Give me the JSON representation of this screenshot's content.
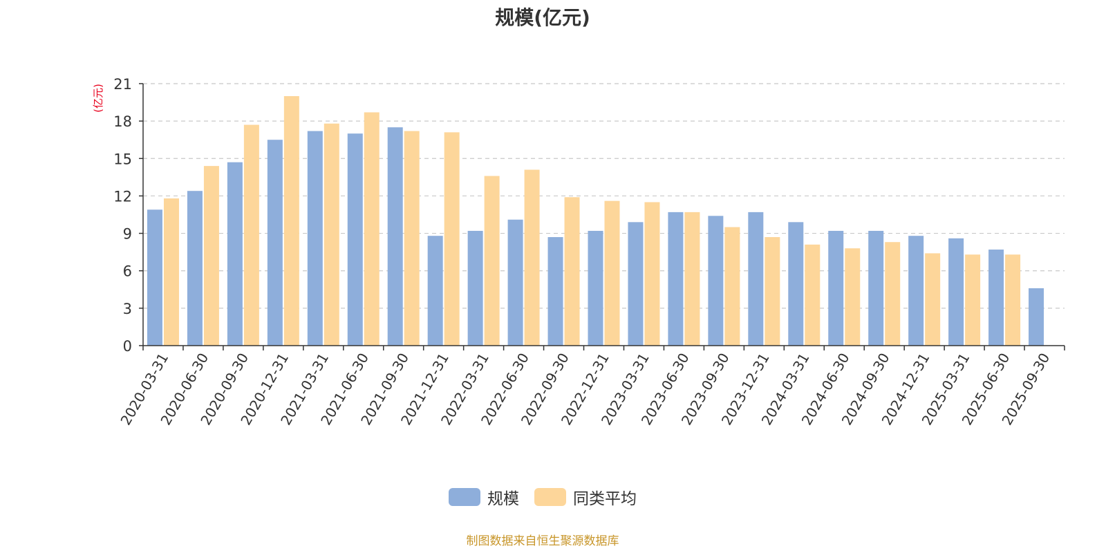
{
  "chart_data": {
    "type": "bar",
    "title": "规模(亿元)",
    "ylabel": "(亿元)",
    "xlabel": "",
    "ylim": [
      0,
      21
    ],
    "yticks": [
      0,
      3,
      6,
      9,
      12,
      15,
      18,
      21
    ],
    "grid": true,
    "legend_position": "bottom-center",
    "categories": [
      "2020-03-31",
      "2020-06-30",
      "2020-09-30",
      "2020-12-31",
      "2021-03-31",
      "2021-06-30",
      "2021-09-30",
      "2021-12-31",
      "2022-03-31",
      "2022-06-30",
      "2022-09-30",
      "2022-12-31",
      "2023-03-31",
      "2023-06-30",
      "2023-09-30",
      "2023-12-31",
      "2024-03-31",
      "2024-06-30",
      "2024-09-30",
      "2024-12-31",
      "2025-03-31",
      "2025-06-30",
      "2025-09-30"
    ],
    "series": [
      {
        "name": "规模",
        "color": "#8eaedb",
        "values": [
          10.9,
          12.4,
          14.7,
          16.5,
          17.2,
          17.0,
          17.5,
          8.8,
          9.2,
          10.1,
          8.7,
          9.2,
          9.9,
          10.7,
          10.4,
          10.7,
          9.9,
          9.2,
          9.2,
          8.8,
          8.6,
          7.7,
          4.6
        ]
      },
      {
        "name": "同类平均",
        "color": "#fdd69a",
        "values": [
          11.8,
          14.4,
          17.7,
          20.0,
          17.8,
          18.7,
          17.2,
          17.1,
          13.6,
          14.1,
          11.9,
          11.6,
          11.5,
          10.7,
          9.5,
          8.7,
          8.1,
          7.8,
          8.3,
          7.4,
          7.3,
          7.3,
          null
        ]
      }
    ]
  },
  "source_note": "制图数据来自恒生聚源数据库",
  "colors": {
    "axis": "#333333",
    "grid": "#c8c8c8",
    "ylabel": "#e8001c",
    "source_note": "#c8962a",
    "title": "#333333"
  }
}
